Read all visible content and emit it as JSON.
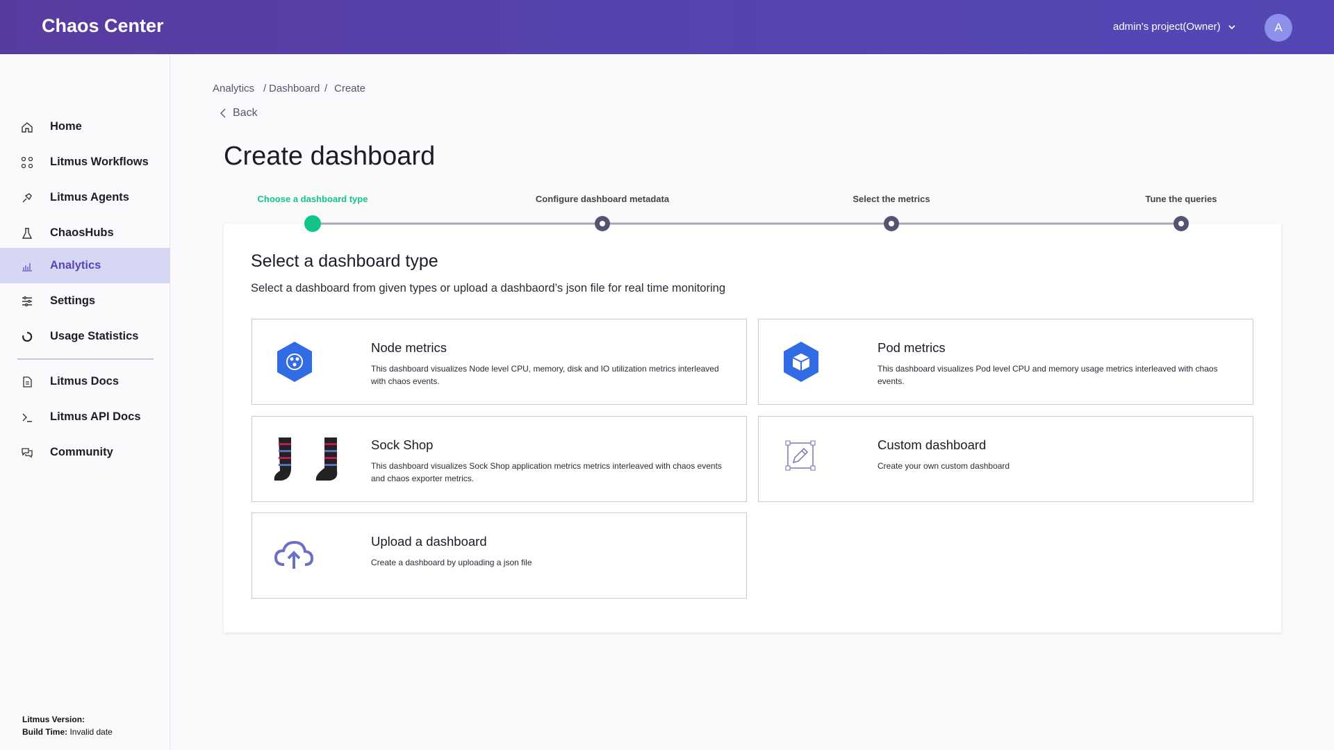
{
  "header": {
    "brand": "Chaos Center",
    "project": "admin's project(Owner)",
    "avatar": "A"
  },
  "sidebar": {
    "items": [
      "Home",
      "Litmus Workflows",
      "Litmus Agents",
      "ChaosHubs",
      "Analytics",
      "Settings",
      "Usage Statistics"
    ],
    "links": [
      "Litmus Docs",
      "Litmus API Docs",
      "Community"
    ],
    "version_label": "Litmus Version:",
    "build_label": "Build Time:",
    "build_value": "Invalid date"
  },
  "breadcrumb": [
    "Analytics",
    "Dashboard",
    "Create"
  ],
  "back": "Back",
  "title": "Create dashboard",
  "steps": [
    "Choose a dashboard type",
    "Configure dashboard metadata",
    "Select the metrics",
    "Tune the queries"
  ],
  "card": {
    "heading": "Select a dashboard type",
    "description": "Select a dashboard from given types or upload a dashbaord’s json file for real time monitoring",
    "options": [
      {
        "title": "Node metrics",
        "description": "This dashboard visualizes Node level CPU, memory, disk and IO utilization metrics interleaved with chaos events."
      },
      {
        "title": "Pod metrics",
        "description": "This dashboard visualizes Pod level CPU and memory usage metrics interleaved with chaos events."
      },
      {
        "title": "Sock Shop",
        "description": "This dashboard visualizes Sock Shop application metrics metrics interleaved with chaos events and chaos exporter metrics."
      },
      {
        "title": "Custom dashboard",
        "description": "Create your own custom dashboard"
      },
      {
        "title": "Upload a dashboard",
        "description": "Create a dashboard by uploading a json file"
      }
    ]
  }
}
